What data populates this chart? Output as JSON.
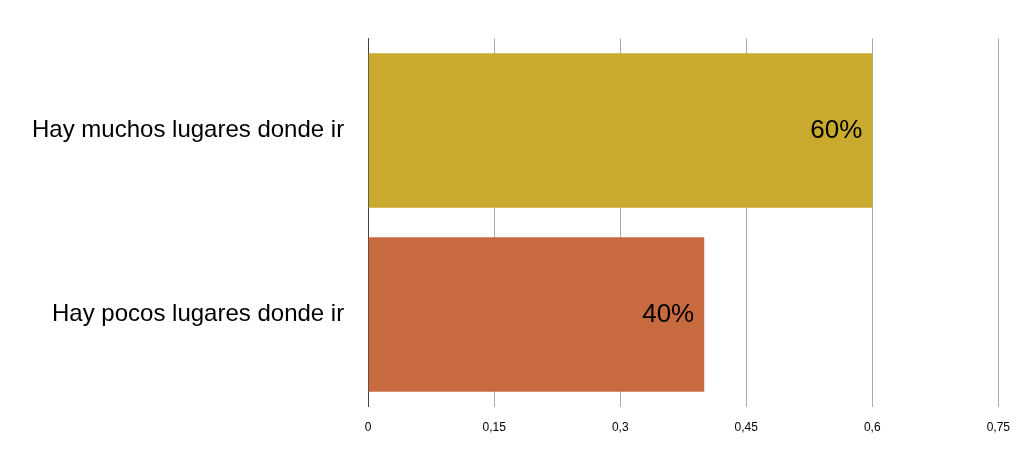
{
  "chart_data": {
    "type": "bar",
    "orientation": "horizontal",
    "categories": [
      "Hay muchos lugares donde ir",
      "Hay pocos lugares donde ir"
    ],
    "values": [
      0.6,
      0.4
    ],
    "colors": [
      "#c9aa2e",
      "#c86a40"
    ],
    "value_labels": [
      "60%",
      "40%"
    ],
    "xlim": [
      0,
      0.75
    ],
    "xticks": [
      0,
      {
        "value": 0.15,
        "label": "0,15"
      },
      {
        "value": 0.3,
        "label": "0,3"
      },
      {
        "value": 0.45,
        "label": "0,45"
      },
      {
        "value": 0.6,
        "label": "0,6"
      },
      {
        "value": 0.75,
        "label": "0,75"
      }
    ],
    "grid": "x"
  }
}
